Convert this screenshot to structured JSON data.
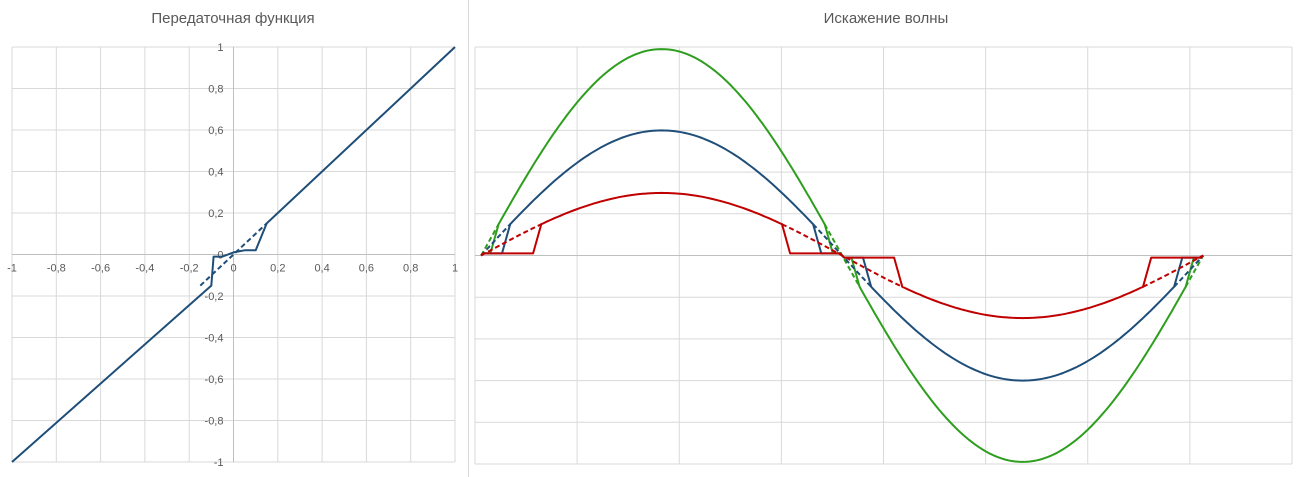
{
  "chart_data": [
    {
      "type": "line",
      "title": "Передаточная функция",
      "xlabel": "",
      "ylabel": "",
      "xlim": [
        -1,
        1
      ],
      "ylim": [
        -1,
        1
      ],
      "x_ticks": [
        -1,
        -0.8,
        -0.6,
        -0.4,
        -0.2,
        0,
        0.2,
        0.4,
        0.6,
        0.8,
        1
      ],
      "y_ticks": [
        -1,
        -0.8,
        -0.6,
        -0.4,
        -0.2,
        0,
        0.2,
        0.4,
        0.6,
        0.8,
        1
      ],
      "x_tick_labels": [
        "-1",
        "-0,8",
        "-0,6",
        "-0,4",
        "-0,2",
        "0",
        "0,2",
        "0,4",
        "0,6",
        "0,8",
        "1"
      ],
      "y_tick_labels": [
        "-1",
        "-0,8",
        "-0,6",
        "-0,4",
        "-0,2",
        "0",
        "0,2",
        "0,4",
        "0,6",
        "0,8",
        "1"
      ],
      "grid": true,
      "series": [
        {
          "color": "#1f4e79",
          "style": "solid",
          "x": [
            -1,
            -0.1,
            -0.1,
            -0.09,
            -0.05,
            0,
            0.05,
            0.1,
            0.15,
            1
          ],
          "y": [
            -1,
            -0.15,
            -0.15,
            -0.01,
            -0.01,
            0.01,
            0.02,
            0.02,
            0.15,
            1
          ]
        },
        {
          "color": "#1f4e79",
          "style": "dashed",
          "x": [
            -0.15,
            0.15
          ],
          "y": [
            -0.15,
            0.15
          ]
        }
      ]
    },
    {
      "type": "line",
      "title": "Искажение волны",
      "xlabel": "",
      "ylabel": "",
      "xlim": [
        0,
        8
      ],
      "ylim": [
        -1,
        1
      ],
      "grid": true,
      "series": [
        {
          "color": "#2e9e1e",
          "amplitude": 0.99,
          "threshold": 0.15,
          "notch": 0.01
        },
        {
          "color": "#1f4e79",
          "amplitude": 0.6,
          "threshold": 0.15,
          "notch": 0.01
        },
        {
          "color": "#c00000",
          "amplitude": 0.3,
          "threshold": 0.15,
          "notch": 0.01
        }
      ]
    }
  ]
}
